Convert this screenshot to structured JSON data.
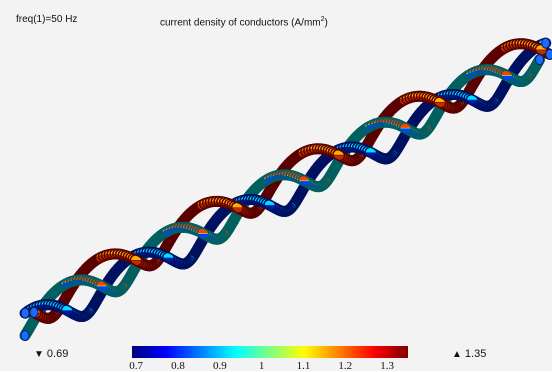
{
  "header": {
    "parameter": "freq(1)=50 Hz",
    "title_main": "current density of conductors (A/mm",
    "title_sup": "2",
    "title_end": ")"
  },
  "legend": {
    "min_label": "0.69",
    "max_label": "1.35",
    "min_icon": "triangle-down-icon",
    "max_icon": "triangle-up-icon",
    "ticks": [
      "0.7",
      "0.8",
      "0.9",
      "1",
      "1.1",
      "1.2",
      "1.3"
    ],
    "range": [
      0.69,
      1.35
    ]
  },
  "colors": {
    "background": "#f3f3f3",
    "low": "#00007f",
    "mid": "#00ffff",
    "high": "#7f0000"
  }
}
